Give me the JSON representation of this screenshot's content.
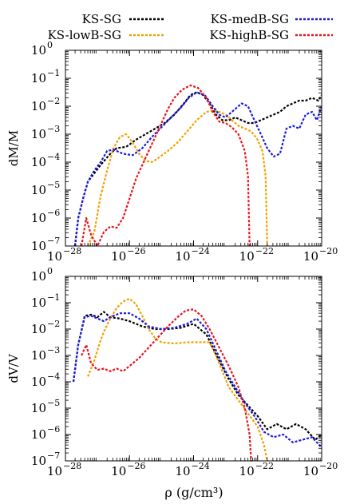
{
  "legend": [
    {
      "label": "KS-SG",
      "color": "#000000"
    },
    {
      "label": "KS-lowB-SG",
      "color": "#f5a000"
    },
    {
      "label": "KS-medB-SG",
      "color": "#1a1adc"
    },
    {
      "label": "KS-highB-SG",
      "color": "#e8141c"
    }
  ],
  "xlabel": "ρ (g/cm³)",
  "chart_data": [
    {
      "type": "line",
      "ylabel": "dM/M",
      "xscale": "log",
      "yscale": "log",
      "xlim": [
        1e-28,
        1e-20
      ],
      "ylim": [
        1e-07,
        1
      ],
      "xticks": [
        {
          "exp": -28
        },
        {
          "exp": -26
        },
        {
          "exp": -24
        },
        {
          "exp": -22
        },
        {
          "exp": -20
        }
      ],
      "yticks": [
        {
          "exp": 0
        },
        {
          "exp": -1
        },
        {
          "exp": -2
        },
        {
          "exp": -3
        },
        {
          "exp": -4
        },
        {
          "exp": -5
        },
        {
          "exp": -6
        },
        {
          "exp": -7
        }
      ],
      "series": [
        {
          "name": "KS-SG",
          "color": "#000000",
          "values": [
            [
              -27.7,
              -7
            ],
            [
              -27.6,
              -6
            ],
            [
              -27.45,
              -5.3
            ],
            [
              -27.3,
              -4.7
            ],
            [
              -27.1,
              -4.4
            ],
            [
              -26.9,
              -4.1
            ],
            [
              -26.6,
              -3.7
            ],
            [
              -26.4,
              -3.5
            ],
            [
              -26.1,
              -3.45
            ],
            [
              -25.8,
              -3.2
            ],
            [
              -25.5,
              -3.0
            ],
            [
              -25.2,
              -2.8
            ],
            [
              -24.9,
              -2.6
            ],
            [
              -24.6,
              -2.3
            ],
            [
              -24.3,
              -1.9
            ],
            [
              -24.1,
              -1.6
            ],
            [
              -23.9,
              -1.5
            ],
            [
              -23.7,
              -1.6
            ],
            [
              -23.5,
              -1.9
            ],
            [
              -23.3,
              -2.3
            ],
            [
              -23.1,
              -2.5
            ],
            [
              -22.9,
              -2.5
            ],
            [
              -22.7,
              -2.4
            ],
            [
              -22.5,
              -2.5
            ],
            [
              -22.3,
              -2.6
            ],
            [
              -22.1,
              -2.6
            ],
            [
              -21.9,
              -2.5
            ],
            [
              -21.7,
              -2.4
            ],
            [
              -21.5,
              -2.3
            ],
            [
              -21.3,
              -2.2
            ],
            [
              -21.1,
              -2.0
            ],
            [
              -20.9,
              -1.9
            ],
            [
              -20.7,
              -1.8
            ],
            [
              -20.5,
              -1.8
            ],
            [
              -20.3,
              -1.7
            ],
            [
              -20.1,
              -1.8
            ],
            [
              -20.0,
              -1.6
            ]
          ]
        },
        {
          "name": "KS-lowB-SG",
          "color": "#f5a000",
          "values": [
            [
              -27.3,
              -7
            ],
            [
              -27.1,
              -6.5
            ],
            [
              -26.9,
              -5.2
            ],
            [
              -26.7,
              -4.3
            ],
            [
              -26.5,
              -3.5
            ],
            [
              -26.3,
              -3.1
            ],
            [
              -26.1,
              -3.0
            ],
            [
              -25.9,
              -3.3
            ],
            [
              -25.7,
              -3.7
            ],
            [
              -25.5,
              -3.95
            ],
            [
              -25.3,
              -4.0
            ],
            [
              -25.1,
              -3.85
            ],
            [
              -24.8,
              -3.6
            ],
            [
              -24.5,
              -3.3
            ],
            [
              -24.2,
              -2.9
            ],
            [
              -23.9,
              -2.5
            ],
            [
              -23.6,
              -2.2
            ],
            [
              -23.3,
              -2.15
            ],
            [
              -23.0,
              -2.3
            ],
            [
              -22.8,
              -2.5
            ],
            [
              -22.6,
              -2.7
            ],
            [
              -22.4,
              -2.8
            ],
            [
              -22.2,
              -2.9
            ],
            [
              -22.0,
              -3.2
            ],
            [
              -21.85,
              -3.6
            ],
            [
              -21.75,
              -4.5
            ],
            [
              -21.7,
              -7
            ]
          ]
        },
        {
          "name": "KS-medB-SG",
          "color": "#1a1adc",
          "values": [
            [
              -27.7,
              -7
            ],
            [
              -27.6,
              -6
            ],
            [
              -27.45,
              -5.3
            ],
            [
              -27.3,
              -4.7
            ],
            [
              -27.1,
              -4.3
            ],
            [
              -26.9,
              -4.0
            ],
            [
              -26.7,
              -3.6
            ],
            [
              -26.5,
              -3.55
            ],
            [
              -26.2,
              -3.7
            ],
            [
              -25.9,
              -3.75
            ],
            [
              -25.6,
              -3.5
            ],
            [
              -25.3,
              -3.1
            ],
            [
              -25.0,
              -2.75
            ],
            [
              -24.7,
              -2.4
            ],
            [
              -24.4,
              -2.05
            ],
            [
              -24.15,
              -1.7
            ],
            [
              -23.9,
              -1.5
            ],
            [
              -23.65,
              -1.6
            ],
            [
              -23.4,
              -2.0
            ],
            [
              -23.2,
              -2.3
            ],
            [
              -23.0,
              -2.4
            ],
            [
              -22.8,
              -2.2
            ],
            [
              -22.5,
              -1.9
            ],
            [
              -22.3,
              -2.0
            ],
            [
              -22.1,
              -2.5
            ],
            [
              -21.9,
              -3.0
            ],
            [
              -21.7,
              -3.5
            ],
            [
              -21.5,
              -3.8
            ],
            [
              -21.3,
              -3.7
            ],
            [
              -21.1,
              -2.8
            ],
            [
              -20.9,
              -2.7
            ],
            [
              -20.7,
              -2.8
            ],
            [
              -20.5,
              -2.3
            ],
            [
              -20.3,
              -2.2
            ],
            [
              -20.15,
              -2.5
            ],
            [
              -20.0,
              -2.0
            ]
          ]
        },
        {
          "name": "KS-highB-SG",
          "color": "#e8141c",
          "values": [
            [
              -27.5,
              -7
            ],
            [
              -27.35,
              -6.0
            ],
            [
              -27.2,
              -6.6
            ],
            [
              -27.0,
              -7.0
            ],
            [
              -26.8,
              -6.5
            ],
            [
              -26.6,
              -6.3
            ],
            [
              -26.4,
              -6.35
            ],
            [
              -26.2,
              -6.0
            ],
            [
              -26.0,
              -5.3
            ],
            [
              -25.8,
              -4.6
            ],
            [
              -25.6,
              -4.1
            ],
            [
              -25.4,
              -3.6
            ],
            [
              -25.2,
              -3.1
            ],
            [
              -25.0,
              -2.6
            ],
            [
              -24.8,
              -2.1
            ],
            [
              -24.6,
              -1.7
            ],
            [
              -24.35,
              -1.4
            ],
            [
              -24.1,
              -1.25
            ],
            [
              -23.85,
              -1.35
            ],
            [
              -23.6,
              -1.7
            ],
            [
              -23.4,
              -2.2
            ],
            [
              -23.2,
              -2.55
            ],
            [
              -23.0,
              -2.6
            ],
            [
              -22.8,
              -2.75
            ],
            [
              -22.6,
              -3.0
            ],
            [
              -22.4,
              -3.6
            ],
            [
              -22.3,
              -4.5
            ],
            [
              -22.25,
              -7
            ]
          ]
        }
      ]
    },
    {
      "type": "line",
      "ylabel": "dV/V",
      "xscale": "log",
      "yscale": "log",
      "xlim": [
        1e-28,
        1e-20
      ],
      "ylim": [
        1e-07,
        1
      ],
      "xticks": [
        {
          "exp": -28
        },
        {
          "exp": -26
        },
        {
          "exp": -24
        },
        {
          "exp": -22
        },
        {
          "exp": -20
        }
      ],
      "yticks": [
        {
          "exp": 0
        },
        {
          "exp": -1
        },
        {
          "exp": -2
        },
        {
          "exp": -3
        },
        {
          "exp": -4
        },
        {
          "exp": -5
        },
        {
          "exp": -6
        },
        {
          "exp": -7
        }
      ],
      "series": [
        {
          "name": "KS-SG",
          "color": "#000000",
          "values": [
            [
              -27.75,
              -4.0
            ],
            [
              -27.6,
              -2.6
            ],
            [
              -27.4,
              -1.5
            ],
            [
              -27.2,
              -1.45
            ],
            [
              -27.0,
              -1.55
            ],
            [
              -26.8,
              -1.35
            ],
            [
              -26.6,
              -1.55
            ],
            [
              -26.3,
              -1.6
            ],
            [
              -26.0,
              -1.7
            ],
            [
              -25.6,
              -1.9
            ],
            [
              -25.2,
              -2.0
            ],
            [
              -24.8,
              -2.0
            ],
            [
              -24.4,
              -1.95
            ],
            [
              -24.0,
              -1.8
            ],
            [
              -23.6,
              -2.2
            ],
            [
              -23.2,
              -3.2
            ],
            [
              -22.9,
              -3.9
            ],
            [
              -22.6,
              -4.5
            ],
            [
              -22.3,
              -4.9
            ],
            [
              -22.0,
              -5.3
            ],
            [
              -21.7,
              -5.8
            ],
            [
              -21.4,
              -5.6
            ],
            [
              -21.1,
              -5.8
            ],
            [
              -20.8,
              -5.6
            ],
            [
              -20.5,
              -5.8
            ],
            [
              -20.2,
              -6.2
            ],
            [
              -20.0,
              -6.0
            ]
          ]
        },
        {
          "name": "KS-lowB-SG",
          "color": "#f5a000",
          "values": [
            [
              -27.3,
              -3.8
            ],
            [
              -27.1,
              -3.2
            ],
            [
              -26.95,
              -2.6
            ],
            [
              -26.8,
              -2.1
            ],
            [
              -26.6,
              -1.6
            ],
            [
              -26.4,
              -1.2
            ],
            [
              -26.2,
              -0.95
            ],
            [
              -26.0,
              -0.85
            ],
            [
              -25.8,
              -1.05
            ],
            [
              -25.6,
              -1.5
            ],
            [
              -25.4,
              -2.0
            ],
            [
              -25.2,
              -2.35
            ],
            [
              -25.0,
              -2.5
            ],
            [
              -24.6,
              -2.55
            ],
            [
              -24.2,
              -2.5
            ],
            [
              -23.8,
              -2.5
            ],
            [
              -23.5,
              -2.5
            ],
            [
              -23.3,
              -3.0
            ],
            [
              -23.1,
              -3.6
            ],
            [
              -22.9,
              -4.2
            ],
            [
              -22.6,
              -4.7
            ],
            [
              -22.3,
              -5.2
            ],
            [
              -22.0,
              -5.7
            ],
            [
              -21.8,
              -6.4
            ],
            [
              -21.7,
              -7
            ]
          ]
        },
        {
          "name": "KS-medB-SG",
          "color": "#1a1adc",
          "values": [
            [
              -27.75,
              -4.0
            ],
            [
              -27.6,
              -2.6
            ],
            [
              -27.4,
              -1.55
            ],
            [
              -27.2,
              -1.5
            ],
            [
              -27.0,
              -1.6
            ],
            [
              -26.8,
              -1.7
            ],
            [
              -26.6,
              -1.55
            ],
            [
              -26.3,
              -1.4
            ],
            [
              -26.0,
              -1.4
            ],
            [
              -25.7,
              -1.6
            ],
            [
              -25.4,
              -1.9
            ],
            [
              -25.0,
              -2.0
            ],
            [
              -24.6,
              -1.95
            ],
            [
              -24.2,
              -1.8
            ],
            [
              -23.9,
              -1.6
            ],
            [
              -23.6,
              -2.0
            ],
            [
              -23.3,
              -2.8
            ],
            [
              -23.0,
              -3.6
            ],
            [
              -22.7,
              -4.2
            ],
            [
              -22.4,
              -4.8
            ],
            [
              -22.1,
              -5.3
            ],
            [
              -21.8,
              -5.9
            ],
            [
              -21.5,
              -6.1
            ],
            [
              -21.2,
              -6.0
            ],
            [
              -20.9,
              -6.3
            ],
            [
              -20.6,
              -6.2
            ],
            [
              -20.3,
              -6.1
            ],
            [
              -20.0,
              -6.5
            ]
          ]
        },
        {
          "name": "KS-highB-SG",
          "color": "#e8141c",
          "values": [
            [
              -27.5,
              -3.0
            ],
            [
              -27.35,
              -2.6
            ],
            [
              -27.2,
              -3.3
            ],
            [
              -27.0,
              -3.55
            ],
            [
              -26.8,
              -3.5
            ],
            [
              -26.6,
              -3.6
            ],
            [
              -26.4,
              -3.5
            ],
            [
              -26.2,
              -3.6
            ],
            [
              -26.0,
              -3.4
            ],
            [
              -25.7,
              -3.1
            ],
            [
              -25.4,
              -2.7
            ],
            [
              -25.1,
              -2.3
            ],
            [
              -24.8,
              -1.9
            ],
            [
              -24.5,
              -1.55
            ],
            [
              -24.25,
              -1.3
            ],
            [
              -24.0,
              -1.25
            ],
            [
              -23.75,
              -1.5
            ],
            [
              -23.5,
              -2.0
            ],
            [
              -23.2,
              -2.7
            ],
            [
              -22.9,
              -3.4
            ],
            [
              -22.6,
              -4.2
            ],
            [
              -22.4,
              -5.0
            ],
            [
              -22.25,
              -6.0
            ],
            [
              -22.2,
              -7
            ]
          ]
        }
      ]
    }
  ]
}
